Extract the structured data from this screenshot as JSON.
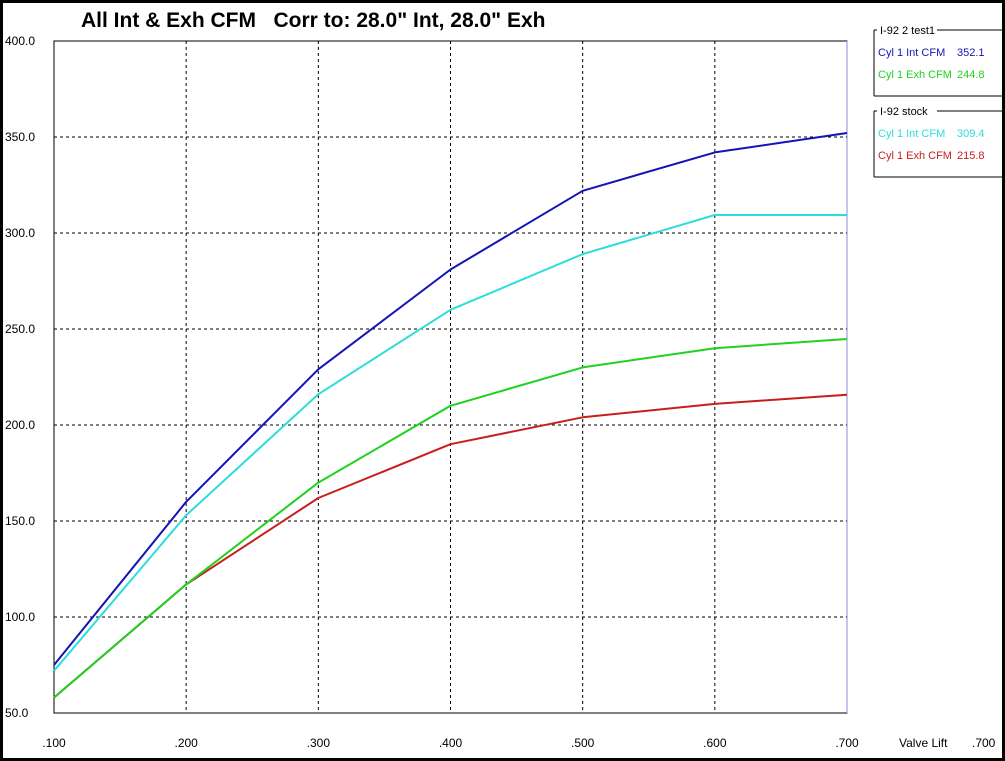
{
  "chart_data": {
    "type": "line",
    "title": "All Int & Exh CFM   Corr to: 28.0\" Int, 28.0\" Exh",
    "xlabel": "Valve Lift",
    "x": [
      0.1,
      0.2,
      0.3,
      0.4,
      0.5,
      0.6,
      0.7
    ],
    "x_tick_labels": [
      ".100",
      ".200",
      ".300",
      ".400",
      ".500",
      ".600",
      ".700"
    ],
    "y_tick_labels": [
      "50.0",
      "100.0",
      "150.0",
      "200.0",
      "250.0",
      "300.0",
      "350.0",
      "400.0"
    ],
    "xlim": [
      0.1,
      0.7
    ],
    "ylim": [
      50,
      400
    ],
    "grid": true,
    "cursor_readout": {
      "label": "Valve Lift",
      "value": ".700"
    },
    "legend_groups": [
      {
        "name": "I-92 2 test1",
        "series_indices": [
          0,
          1
        ]
      },
      {
        "name": "I-92 stock",
        "series_indices": [
          2,
          3
        ]
      }
    ],
    "series": [
      {
        "name": "Cyl 1 Int CFM",
        "readout": "352.1",
        "color": "#1414b4",
        "values": [
          75,
          160,
          229,
          281,
          322,
          342,
          352.1
        ]
      },
      {
        "name": "Cyl 1 Exh CFM",
        "readout": "244.8",
        "color": "#1ed21e",
        "values": [
          58,
          117,
          170,
          210,
          230,
          240,
          244.8
        ]
      },
      {
        "name": "Cyl 1 Int CFM",
        "readout": "309.4",
        "color": "#2ddcdc",
        "values": [
          72,
          153,
          216,
          260,
          289,
          309.4,
          309.4
        ]
      },
      {
        "name": "Cyl 1 Exh CFM",
        "readout": "215.8",
        "color": "#c81e1e",
        "values": [
          58,
          117,
          162,
          190,
          204,
          211,
          215.8
        ]
      }
    ]
  }
}
